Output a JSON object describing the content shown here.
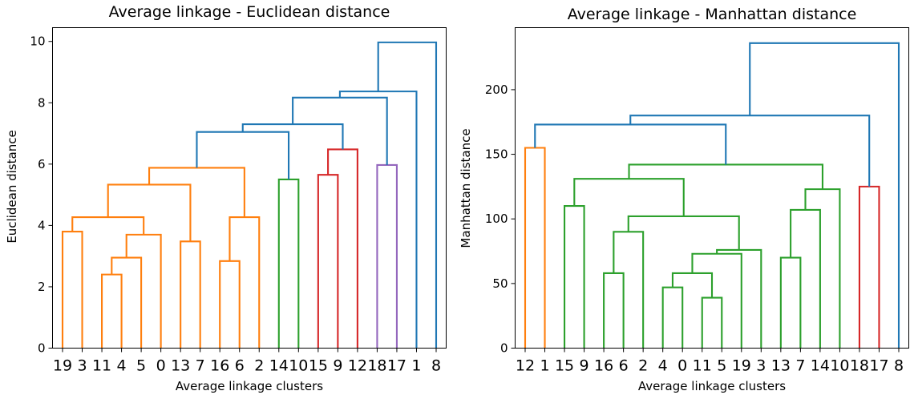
{
  "chart_data": [
    {
      "type": "dendrogram",
      "title": "Average linkage - Euclidean distance",
      "xlabel": "Average linkage clusters",
      "ylabel": "Euclidean distance",
      "ylim": [
        0,
        10.45
      ],
      "yticks": [
        0,
        2,
        4,
        6,
        8,
        10
      ],
      "leaves": [
        "19",
        "3",
        "11",
        "4",
        "5",
        "0",
        "13",
        "7",
        "16",
        "6",
        "2",
        "14",
        "10",
        "15",
        "9",
        "12",
        "18",
        "17",
        "1",
        "8"
      ],
      "links": [
        {
          "xl": 0,
          "hl": 0,
          "xr": 1,
          "hr": 0,
          "h": 3.8,
          "color": "#ff7f0e"
        },
        {
          "xl": 2,
          "hl": 0,
          "xr": 3,
          "hr": 0,
          "h": 2.4,
          "color": "#ff7f0e"
        },
        {
          "xl": 2.5,
          "hl": 2.4,
          "xr": 4,
          "hr": 0,
          "h": 2.95,
          "color": "#ff7f0e"
        },
        {
          "xl": 3.25,
          "hl": 2.95,
          "xr": 5,
          "hr": 0,
          "h": 3.7,
          "color": "#ff7f0e"
        },
        {
          "xl": 0.5,
          "hl": 3.8,
          "xr": 4.125,
          "hr": 3.7,
          "h": 4.27,
          "color": "#ff7f0e"
        },
        {
          "xl": 6,
          "hl": 0,
          "xr": 7,
          "hr": 0,
          "h": 3.48,
          "color": "#ff7f0e"
        },
        {
          "xl": 2.3125,
          "hl": 4.27,
          "xr": 6.5,
          "hr": 3.48,
          "h": 5.33,
          "color": "#ff7f0e"
        },
        {
          "xl": 8,
          "hl": 0,
          "xr": 9,
          "hr": 0,
          "h": 2.84,
          "color": "#ff7f0e"
        },
        {
          "xl": 8.5,
          "hl": 2.84,
          "xr": 10,
          "hr": 0,
          "h": 4.27,
          "color": "#ff7f0e"
        },
        {
          "xl": 4.40625,
          "hl": 5.33,
          "xr": 9.25,
          "hr": 4.27,
          "h": 5.88,
          "color": "#ff7f0e"
        },
        {
          "xl": 11,
          "hl": 0,
          "xr": 12,
          "hr": 0,
          "h": 5.5,
          "color": "#2ca02c"
        },
        {
          "xl": 6.828125,
          "hl": 5.88,
          "xr": 11.5,
          "hr": 5.5,
          "h": 7.05,
          "color": "#1f77b4"
        },
        {
          "xl": 13,
          "hl": 0,
          "xr": 14,
          "hr": 0,
          "h": 5.65,
          "color": "#d62728"
        },
        {
          "xl": 13.5,
          "hl": 5.65,
          "xr": 15,
          "hr": 0,
          "h": 6.48,
          "color": "#d62728"
        },
        {
          "xl": 9.1640625,
          "hl": 7.05,
          "xr": 14.25,
          "hr": 6.48,
          "h": 7.3,
          "color": "#1f77b4"
        },
        {
          "xl": 16,
          "hl": 0,
          "xr": 17,
          "hr": 0,
          "h": 5.97,
          "color": "#9467bd"
        },
        {
          "xl": 11.70703125,
          "hl": 7.3,
          "xr": 16.5,
          "hr": 5.97,
          "h": 8.17,
          "color": "#1f77b4"
        },
        {
          "xl": 14.103515625,
          "hl": 8.17,
          "xr": 18,
          "hr": 0,
          "h": 8.37,
          "color": "#1f77b4"
        },
        {
          "xl": 16.0517578125,
          "hl": 8.37,
          "xr": 19,
          "hr": 0,
          "h": 9.97,
          "color": "#1f77b4"
        }
      ]
    },
    {
      "type": "dendrogram",
      "title": "Average linkage - Manhattan distance",
      "xlabel": "Average linkage clusters",
      "ylabel": "Manhattan distance",
      "ylim": [
        0,
        248
      ],
      "yticks": [
        0,
        50,
        100,
        150,
        200
      ],
      "leaves": [
        "12",
        "1",
        "15",
        "9",
        "16",
        "6",
        "2",
        "4",
        "0",
        "11",
        "5",
        "19",
        "3",
        "13",
        "7",
        "14",
        "10",
        "18",
        "17",
        "8"
      ],
      "links": [
        {
          "xl": 0,
          "hl": 0,
          "xr": 1,
          "hr": 0,
          "h": 155,
          "color": "#ff7f0e"
        },
        {
          "xl": 2,
          "hl": 0,
          "xr": 3,
          "hr": 0,
          "h": 110,
          "color": "#2ca02c"
        },
        {
          "xl": 4,
          "hl": 0,
          "xr": 5,
          "hr": 0,
          "h": 58,
          "color": "#2ca02c"
        },
        {
          "xl": 4.5,
          "hl": 58,
          "xr": 6,
          "hr": 0,
          "h": 90,
          "color": "#2ca02c"
        },
        {
          "xl": 9,
          "hl": 0,
          "xr": 10,
          "hr": 0,
          "h": 39,
          "color": "#2ca02c"
        },
        {
          "xl": 7,
          "hl": 0,
          "xr": 8,
          "hr": 0,
          "h": 47,
          "color": "#2ca02c"
        },
        {
          "xl": 7.5,
          "hl": 47,
          "xr": 9.5,
          "hr": 39,
          "h": 58,
          "color": "#2ca02c"
        },
        {
          "xl": 8.5,
          "hl": 58,
          "xr": 11,
          "hr": 0,
          "h": 73,
          "color": "#2ca02c"
        },
        {
          "xl": 9.75,
          "hl": 73,
          "xr": 12,
          "hr": 0,
          "h": 76,
          "color": "#2ca02c"
        },
        {
          "xl": 5.25,
          "hl": 90,
          "xr": 10.875,
          "hr": 76,
          "h": 102,
          "color": "#2ca02c"
        },
        {
          "xl": 2.5,
          "hl": 110,
          "xr": 8.0625,
          "hr": 102,
          "h": 131,
          "color": "#2ca02c"
        },
        {
          "xl": 13,
          "hl": 0,
          "xr": 14,
          "hr": 0,
          "h": 70,
          "color": "#2ca02c"
        },
        {
          "xl": 13.5,
          "hl": 70,
          "xr": 15,
          "hr": 0,
          "h": 107,
          "color": "#2ca02c"
        },
        {
          "xl": 14.25,
          "hl": 107,
          "xr": 16,
          "hr": 0,
          "h": 123,
          "color": "#2ca02c"
        },
        {
          "xl": 5.28125,
          "hl": 131,
          "xr": 15.125,
          "hr": 123,
          "h": 142,
          "color": "#2ca02c"
        },
        {
          "xl": 0.5,
          "hl": 155,
          "xr": 10.203125,
          "hr": 142,
          "h": 173,
          "color": "#1f77b4"
        },
        {
          "xl": 17,
          "hl": 0,
          "xr": 18,
          "hr": 0,
          "h": 125,
          "color": "#d62728"
        },
        {
          "xl": 5.3515625,
          "hl": 173,
          "xr": 17.5,
          "hr": 125,
          "h": 180,
          "color": "#1f77b4"
        },
        {
          "xl": 11.42578125,
          "hl": 180,
          "xr": 19,
          "hr": 0,
          "h": 236,
          "color": "#1f77b4"
        }
      ]
    }
  ]
}
